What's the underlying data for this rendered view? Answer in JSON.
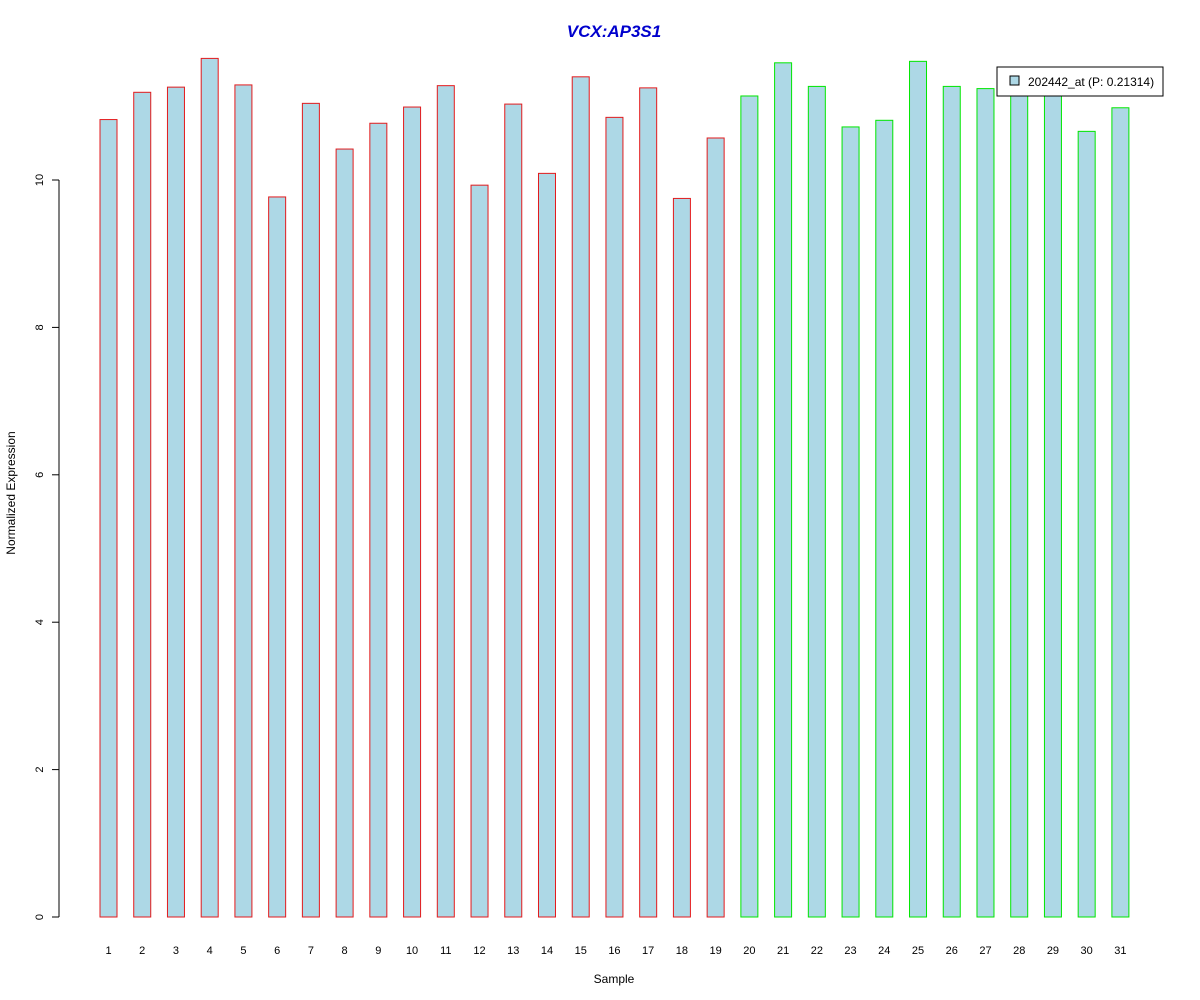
{
  "chart_data": {
    "type": "bar",
    "title": "VCX:AP3S1",
    "xlabel": "Sample",
    "ylabel": "Normalized Expression",
    "categories": [
      "1",
      "2",
      "3",
      "4",
      "5",
      "6",
      "7",
      "8",
      "9",
      "10",
      "11",
      "12",
      "13",
      "14",
      "15",
      "16",
      "17",
      "18",
      "19",
      "20",
      "21",
      "22",
      "23",
      "24",
      "25",
      "26",
      "27",
      "28",
      "29",
      "30",
      "31"
    ],
    "series": [
      {
        "name": "202442_at (P: 0.21314)",
        "values": [
          10.82,
          11.19,
          11.26,
          11.65,
          11.29,
          9.77,
          11.04,
          10.42,
          10.77,
          10.99,
          11.28,
          9.93,
          11.03,
          10.09,
          11.4,
          10.85,
          11.25,
          9.75,
          10.57,
          11.14,
          11.59,
          11.27,
          10.72,
          10.81,
          11.61,
          11.27,
          11.24,
          11.19,
          11.19,
          10.66,
          10.98
        ]
      }
    ],
    "groups": [
      {
        "samples": "1-19",
        "border_color": "#e31a1c"
      },
      {
        "samples": "20-31",
        "border_color": "#00e600"
      }
    ],
    "yticks": [
      0,
      2,
      4,
      6,
      8,
      10
    ],
    "ylim": [
      0,
      11.65
    ],
    "grid": false,
    "legend": {
      "position": "top-right",
      "entry": "202442_at (P: 0.21314)"
    },
    "colors": {
      "bar_fill": "#add8e6",
      "title": "#0000cd",
      "group1_border": "#e31a1c",
      "group2_border": "#00e600"
    }
  }
}
